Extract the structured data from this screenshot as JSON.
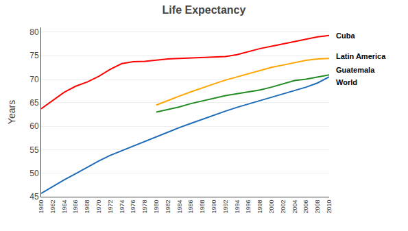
{
  "chart_data": {
    "type": "line",
    "title": "Life Expectancy",
    "ylabel": "Years",
    "xlim": [
      1960,
      2010
    ],
    "xticks": [
      1960,
      1962,
      1964,
      1966,
      1968,
      1970,
      1972,
      1974,
      1976,
      1978,
      1980,
      1982,
      1984,
      1986,
      1988,
      1990,
      1992,
      1994,
      1996,
      1998,
      2000,
      2002,
      2004,
      2006,
      2008,
      2010
    ],
    "ylim": [
      45,
      81
    ],
    "yticks": [
      45,
      50,
      55,
      60,
      65,
      70,
      75,
      80
    ],
    "grid": "y",
    "series": [
      {
        "name": "Cuba",
        "color": "#ff0000",
        "label_y": 79.3,
        "x": [
          1960,
          1962,
          1964,
          1966,
          1968,
          1970,
          1972,
          1974,
          1976,
          1978,
          1980,
          1982,
          1984,
          1986,
          1988,
          1990,
          1992,
          1994,
          1996,
          1998,
          2000,
          2002,
          2004,
          2006,
          2008,
          2010
        ],
        "values": [
          63.7,
          65.4,
          67.2,
          68.5,
          69.4,
          70.6,
          72.1,
          73.3,
          73.7,
          73.8,
          74.1,
          74.3,
          74.4,
          74.5,
          74.6,
          74.7,
          74.8,
          75.2,
          75.9,
          76.5,
          77.0,
          77.5,
          78.0,
          78.5,
          79.0,
          79.3
        ]
      },
      {
        "name": "Latin America",
        "color": "#ffa500",
        "label_y": 74.9,
        "x": [
          1980,
          1982,
          1984,
          1986,
          1988,
          1990,
          1992,
          1994,
          1996,
          1998,
          2000,
          2002,
          2004,
          2006,
          2008,
          2010
        ],
        "values": [
          64.5,
          65.5,
          66.4,
          67.3,
          68.2,
          69.0,
          69.8,
          70.5,
          71.2,
          71.9,
          72.5,
          73.0,
          73.5,
          74.0,
          74.3,
          74.4
        ]
      },
      {
        "name": "Guatemala",
        "color": "#228B22",
        "label_y": 72.0,
        "x": [
          1980,
          1982,
          1984,
          1986,
          1988,
          1990,
          1992,
          1994,
          1996,
          1998,
          2000,
          2002,
          2004,
          2006,
          2008,
          2010
        ],
        "values": [
          63.0,
          63.5,
          64.1,
          64.8,
          65.4,
          66.0,
          66.5,
          66.9,
          67.3,
          67.7,
          68.3,
          69.0,
          69.7,
          70.0,
          70.4,
          70.9
        ]
      },
      {
        "name": "World",
        "color": "#1e6bb8",
        "label_y": 69.3,
        "x": [
          1960,
          1962,
          1964,
          1966,
          1968,
          1970,
          1972,
          1974,
          1976,
          1978,
          1980,
          1982,
          1984,
          1986,
          1988,
          1990,
          1992,
          1994,
          1996,
          1998,
          2000,
          2002,
          2004,
          2006,
          2008,
          2010
        ],
        "values": [
          45.7,
          47.2,
          48.6,
          49.9,
          51.3,
          52.6,
          53.8,
          54.8,
          55.8,
          56.8,
          57.8,
          58.8,
          59.7,
          60.6,
          61.5,
          62.4,
          63.2,
          64.0,
          64.7,
          65.4,
          66.1,
          66.8,
          67.5,
          68.3,
          69.2,
          70.5
        ]
      }
    ]
  }
}
